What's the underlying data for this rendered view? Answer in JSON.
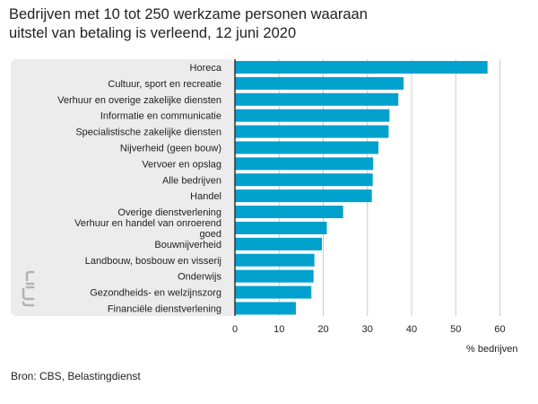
{
  "header": {
    "title_line1": "Bedrijven met 10 tot 250 werkzame personen waaraan",
    "title_line2": "uitstel van betaling is verleend, 12 juni 2020"
  },
  "chart_data": {
    "type": "bar",
    "orientation": "horizontal",
    "categories": [
      "Horeca",
      "Cultuur, sport en recreatie",
      "Verhuur en overige zakelijke diensten",
      "Informatie en communicatie",
      "Specialistische zakelijke diensten",
      "Nijverheid (geen bouw)",
      "Vervoer en opslag",
      "Alle bedrijven",
      "Handel",
      "Overige dienstverlening",
      "Verhuur en handel van onroerend goed",
      "Bouwnijverheid",
      "Landbouw, bosbouw en visserij",
      "Onderwijs",
      "Gezondheids- en welzijnszorg",
      "Financiële dienstverlening"
    ],
    "category_lines": [
      [
        "Horeca"
      ],
      [
        "Cultuur, sport en recreatie"
      ],
      [
        "Verhuur en overige zakelijke diensten"
      ],
      [
        "Informatie en communicatie"
      ],
      [
        "Specialistische zakelijke diensten"
      ],
      [
        "Nijverheid (geen bouw)"
      ],
      [
        "Vervoer en opslag"
      ],
      [
        "Alle bedrijven"
      ],
      [
        "Handel"
      ],
      [
        "Overige dienstverlening"
      ],
      [
        "Verhuur en handel van onroerend",
        "goed"
      ],
      [
        "Bouwnijverheid"
      ],
      [
        "Landbouw, bosbouw en visserij"
      ],
      [
        "Onderwijs"
      ],
      [
        "Gezondheids- en welzijnszorg"
      ],
      [
        "Financiële dienstverlening"
      ]
    ],
    "values": [
      57.2,
      38.2,
      37.0,
      35.0,
      34.8,
      32.5,
      31.3,
      31.2,
      31.0,
      24.5,
      20.8,
      19.7,
      18.0,
      17.8,
      17.3,
      13.8
    ],
    "xlabel": "% bedrijven",
    "xlim": [
      0,
      60
    ],
    "xticks": [
      0,
      10,
      20,
      30,
      40,
      50,
      60
    ],
    "grid": true,
    "colors": {
      "bar": "#00a1cd",
      "label_panel": "#ececec",
      "grid": "#cccccc",
      "axis": "#333333",
      "logo": "#b3b3b3"
    }
  },
  "branding": {
    "logo_icon": "cbs-logo-icon"
  },
  "footer": {
    "source": "Bron: CBS, Belastingdienst"
  }
}
